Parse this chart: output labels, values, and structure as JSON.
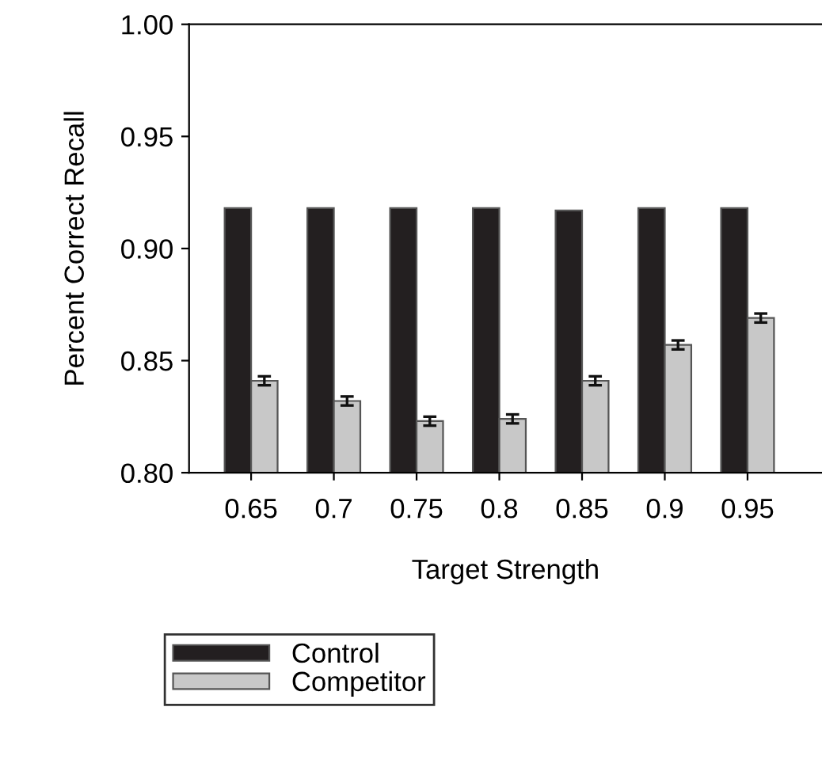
{
  "chart_data": {
    "type": "bar",
    "xlabel": "Target Strength",
    "ylabel": "Percent Correct Recall",
    "categories": [
      "0.65",
      "0.7",
      "0.75",
      "0.8",
      "0.85",
      "0.9",
      "0.95"
    ],
    "series": [
      {
        "name": "Control",
        "color": "#231f20",
        "values": [
          0.918,
          0.918,
          0.918,
          0.918,
          0.917,
          0.918,
          0.918
        ]
      },
      {
        "name": "Competitor",
        "color": "#c8c8c8",
        "values": [
          0.841,
          0.832,
          0.823,
          0.824,
          0.841,
          0.857,
          0.869
        ],
        "errors": [
          0.002,
          0.002,
          0.002,
          0.002,
          0.002,
          0.002,
          0.002
        ]
      }
    ],
    "ylim": [
      0.8,
      1.0
    ],
    "yticks": [
      {
        "value": 0.8,
        "label": "0.80"
      },
      {
        "value": 0.85,
        "label": "0.85"
      },
      {
        "value": 0.9,
        "label": "0.90"
      },
      {
        "value": 0.95,
        "label": "0.95"
      },
      {
        "value": 1.0,
        "label": "1.00"
      }
    ],
    "grid": false,
    "legend": "bottom"
  }
}
